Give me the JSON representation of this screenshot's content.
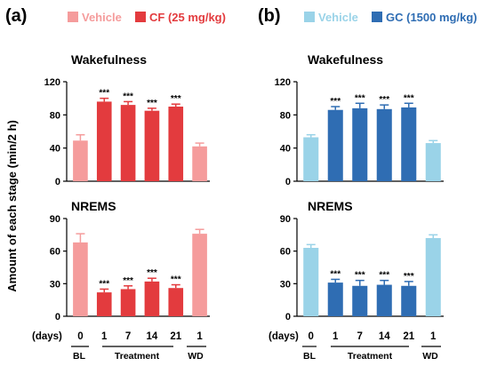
{
  "ylabel": "Amount of each stage (min/2 h)",
  "days_label": "(days)",
  "group_labels": [
    "BL",
    "Treatment",
    "WD"
  ],
  "colors": {
    "a_light": "#f59c9c",
    "a_dark": "#e33b3e",
    "b_light": "#9ad3e8",
    "b_dark": "#2f6db3"
  },
  "panels": [
    {
      "letter": "(a)",
      "legend": [
        {
          "label": "Vehicle",
          "color": "#f59c9c"
        },
        {
          "label": "CF (25 mg/kg)",
          "color": "#e33b3e"
        }
      ]
    },
    {
      "letter": "(b)",
      "legend": [
        {
          "label": "Vehicle",
          "color": "#9ad3e8"
        },
        {
          "label": "GC (1500 mg/kg)",
          "color": "#2f6db3"
        }
      ]
    }
  ],
  "chart_data": [
    {
      "type": "bar",
      "panel": "a",
      "title": "Wakefulness",
      "categories": [
        "0",
        "1",
        "7",
        "14",
        "21",
        "1"
      ],
      "values": [
        49,
        96,
        92,
        85,
        90,
        42
      ],
      "errors": [
        7,
        4,
        4,
        3,
        3,
        4
      ],
      "significance": [
        "",
        "***",
        "***",
        "***",
        "***",
        ""
      ],
      "colors": [
        "#f59c9c",
        "#e33b3e",
        "#e33b3e",
        "#e33b3e",
        "#e33b3e",
        "#f59c9c"
      ],
      "ylim": [
        0,
        120
      ],
      "yticks": [
        0,
        40,
        80,
        120
      ]
    },
    {
      "type": "bar",
      "panel": "a",
      "title": "NREMS",
      "categories": [
        "0",
        "1",
        "7",
        "14",
        "21",
        "1"
      ],
      "values": [
        68,
        22,
        25,
        32,
        26,
        76
      ],
      "errors": [
        8,
        3,
        3,
        3,
        3,
        4
      ],
      "significance": [
        "",
        "***",
        "***",
        "***",
        "***",
        ""
      ],
      "colors": [
        "#f59c9c",
        "#e33b3e",
        "#e33b3e",
        "#e33b3e",
        "#e33b3e",
        "#f59c9c"
      ],
      "ylim": [
        0,
        90
      ],
      "yticks": [
        0,
        30,
        60,
        90
      ]
    },
    {
      "type": "bar",
      "panel": "b",
      "title": "Wakefulness",
      "categories": [
        "0",
        "1",
        "7",
        "14",
        "21",
        "1"
      ],
      "values": [
        53,
        86,
        88,
        87,
        89,
        46
      ],
      "errors": [
        3,
        4,
        6,
        5,
        5,
        3
      ],
      "significance": [
        "",
        "***",
        "***",
        "***",
        "***",
        ""
      ],
      "colors": [
        "#9ad3e8",
        "#2f6db3",
        "#2f6db3",
        "#2f6db3",
        "#2f6db3",
        "#9ad3e8"
      ],
      "ylim": [
        0,
        120
      ],
      "yticks": [
        0,
        40,
        80,
        120
      ]
    },
    {
      "type": "bar",
      "panel": "b",
      "title": "NREMS",
      "categories": [
        "0",
        "1",
        "7",
        "14",
        "21",
        "1"
      ],
      "values": [
        63,
        31,
        28,
        29,
        28,
        72
      ],
      "errors": [
        3,
        3,
        5,
        4,
        4,
        3
      ],
      "significance": [
        "",
        "***",
        "***",
        "***",
        "***",
        ""
      ],
      "colors": [
        "#9ad3e8",
        "#2f6db3",
        "#2f6db3",
        "#2f6db3",
        "#2f6db3",
        "#9ad3e8"
      ],
      "ylim": [
        0,
        90
      ],
      "yticks": [
        0,
        30,
        60,
        90
      ]
    }
  ]
}
